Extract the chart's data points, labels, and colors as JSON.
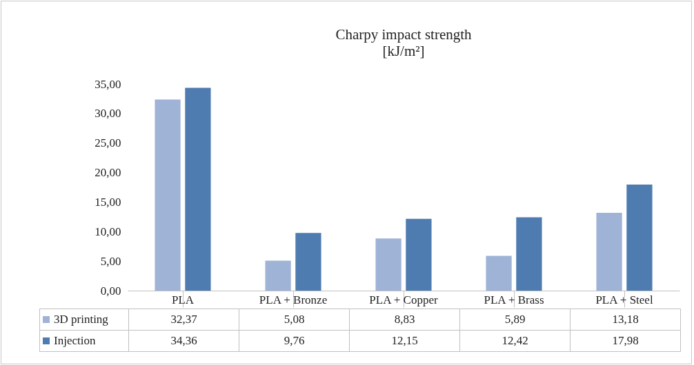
{
  "chart_data": {
    "type": "bar",
    "title": "Charpy impact strength",
    "subtitle": "[kJ/m²]",
    "categories": [
      "PLA",
      "PLA + Bronze",
      "PLA + Copper",
      "PLA + Brass",
      "PLA + Steel"
    ],
    "series": [
      {
        "name": "3D printing",
        "color": "#9fb3d7",
        "values": [
          32.37,
          5.08,
          8.83,
          5.89,
          13.18
        ],
        "value_labels": [
          "32,37",
          "5,08",
          "8,83",
          "5,89",
          "13,18"
        ]
      },
      {
        "name": "Injection",
        "color": "#4e7bb0",
        "values": [
          34.36,
          9.76,
          12.15,
          12.42,
          17.98
        ],
        "value_labels": [
          "34,36",
          "9,76",
          "12,15",
          "12,42",
          "17,98"
        ]
      }
    ],
    "ylim": [
      0,
      35
    ],
    "yticks": [
      {
        "value": 0,
        "label": "0,00"
      },
      {
        "value": 5,
        "label": "5,00"
      },
      {
        "value": 10,
        "label": "10,00"
      },
      {
        "value": 15,
        "label": "15,00"
      },
      {
        "value": 20,
        "label": "20,00"
      },
      {
        "value": 25,
        "label": "25,00"
      },
      {
        "value": 30,
        "label": "30,00"
      },
      {
        "value": 35,
        "label": "35,00"
      }
    ],
    "legend": "bottom"
  }
}
